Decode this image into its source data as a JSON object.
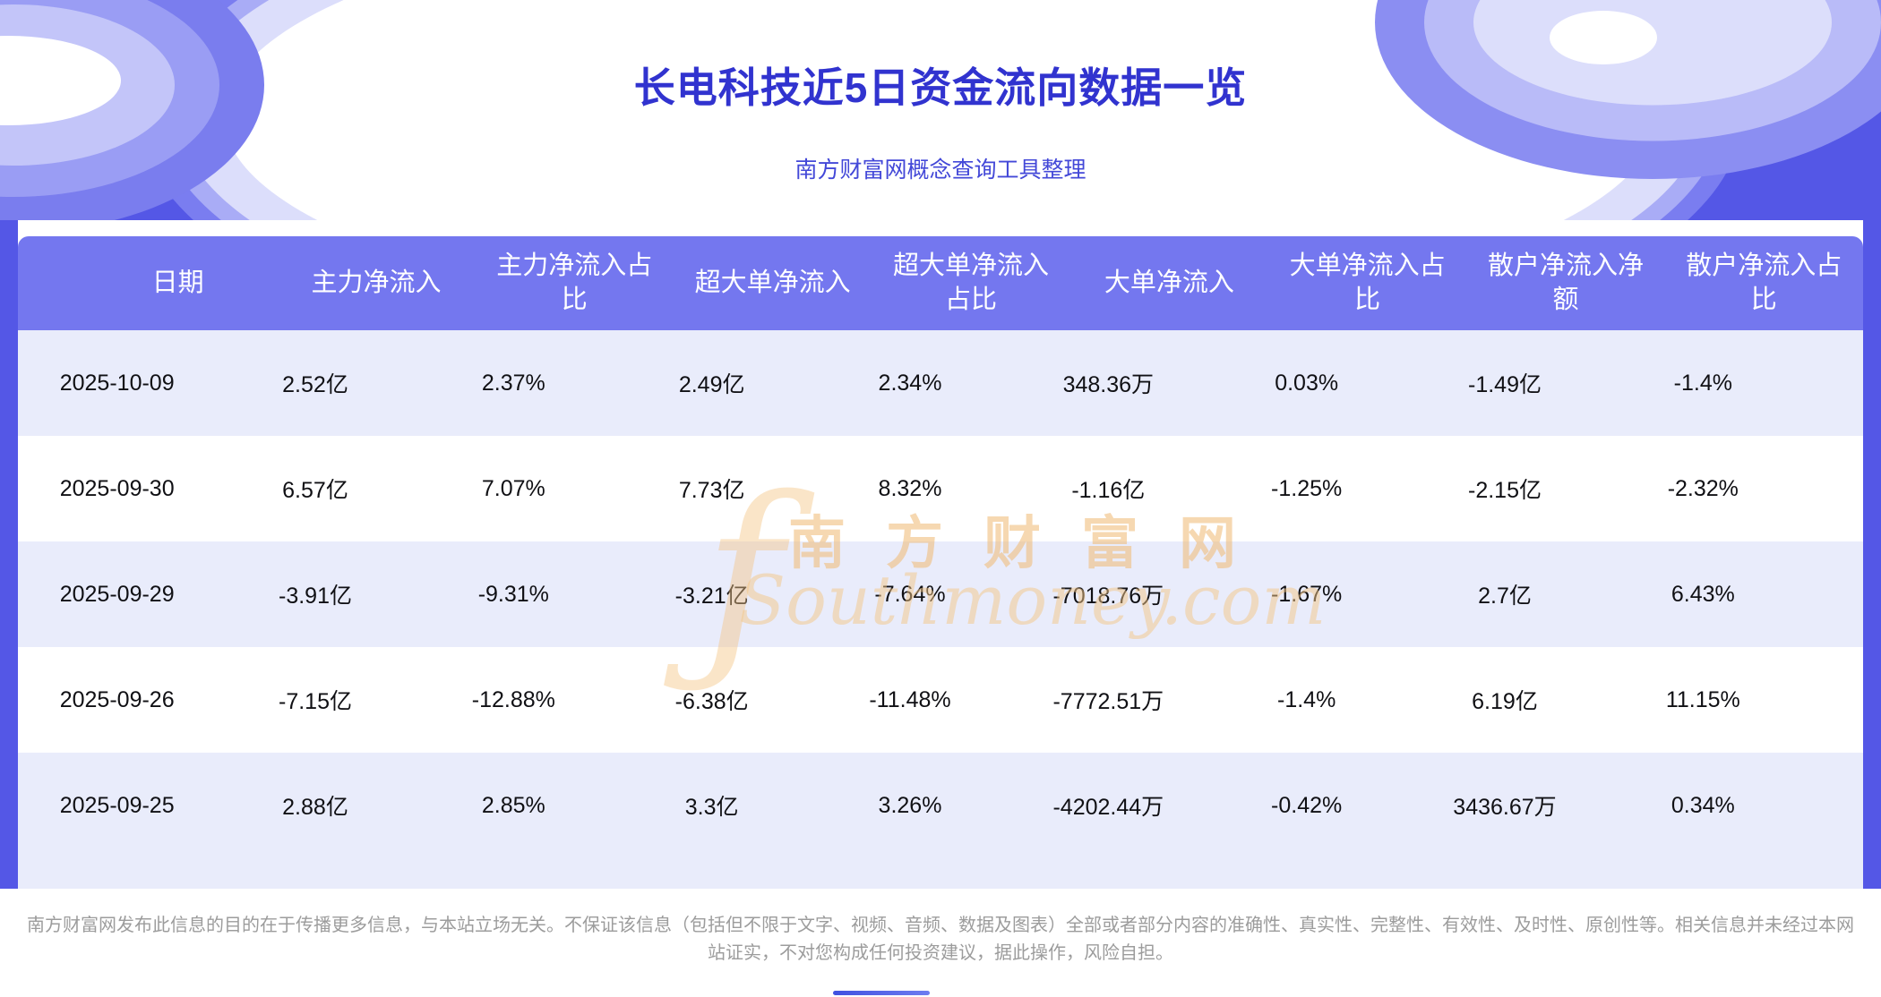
{
  "banner": {
    "title": "长电科技近5日资金流向数据一览",
    "subtitle": "南方财富网概念查询工具整理"
  },
  "chart_data": {
    "type": "table",
    "title": "长电科技近5日资金流向数据一览",
    "subtitle": "南方财富网概念查询工具整理",
    "columns": [
      "日期",
      "主力净流入",
      "主力净流入占比",
      "超大单净流入",
      "超大单净流入占比",
      "大单净流入",
      "大单净流入占比",
      "散户净流入净额",
      "散户净流入占比"
    ],
    "rows": [
      [
        "2025-10-09",
        "2.52亿",
        "2.37%",
        "2.49亿",
        "2.34%",
        "348.36万",
        "0.03%",
        "-1.49亿",
        "-1.4%"
      ],
      [
        "2025-09-30",
        "6.57亿",
        "7.07%",
        "7.73亿",
        "8.32%",
        "-1.16亿",
        "-1.25%",
        "-2.15亿",
        "-2.32%"
      ],
      [
        "2025-09-29",
        "-3.91亿",
        "-9.31%",
        "-3.21亿",
        "-7.64%",
        "-7018.76万",
        "-1.67%",
        "2.7亿",
        "6.43%"
      ],
      [
        "2025-09-26",
        "-7.15亿",
        "-12.88%",
        "-6.38亿",
        "-11.48%",
        "-7772.51万",
        "-1.4%",
        "6.19亿",
        "11.15%"
      ],
      [
        "2025-09-25",
        "2.88亿",
        "2.85%",
        "3.3亿",
        "3.26%",
        "-4202.44万",
        "-0.42%",
        "3436.67万",
        "0.34%"
      ]
    ]
  },
  "watermark": {
    "logo_glyph": "ƒ",
    "cn": "南方财富网",
    "en": "Southmoney.com"
  },
  "footer": {
    "disclaimer": "南方财富网发布此信息的目的在于传播更多信息，与本站立场无关。不保证该信息（包括但不限于文字、视频、音频、数据及图表）全部或者部分内容的准确性、真实性、完整性、有效性、及时性、原创性等。相关信息并未经过本网站证实，不对您构成任何投资建议，据此操作，风险自担。"
  },
  "colors": {
    "banner_background": "#5457e6",
    "table_header_background": "#7477ef",
    "row_alternate_background": "#e9ecfb",
    "title_color": "#3133cf",
    "watermark_color": "#f0c387",
    "footer_text_color": "#9c9c9c"
  }
}
